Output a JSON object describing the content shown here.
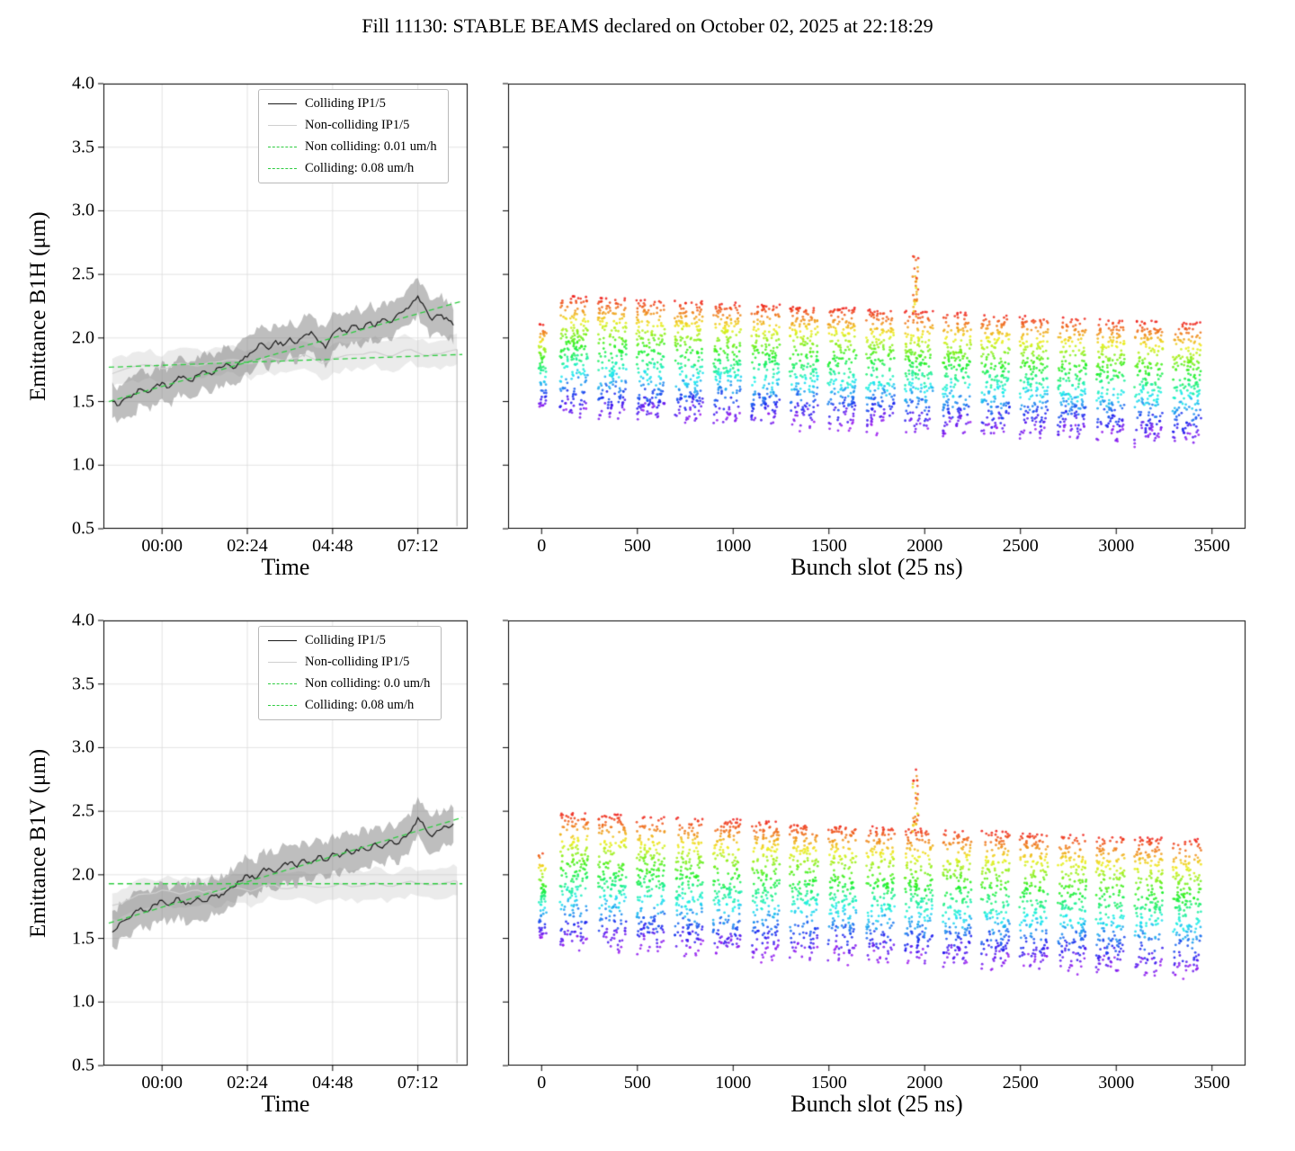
{
  "title": "Fill 11130: STABLE BEAMS declared on October 02, 2025 at 22:18:29",
  "colors": {
    "colliding_line": "#1a1a1a",
    "noncolliding_line": "#cfcfcf",
    "colliding_band": "rgba(125,125,125,0.50)",
    "noncolliding_band": "rgba(190,190,190,0.30)",
    "fit_line": "#2ecc40",
    "grid": "#dcdcdc",
    "end_drop": "#b5b5b5"
  },
  "chart_data": [
    {
      "type": "line",
      "panel": "B1H vs time",
      "xlabel": "Time",
      "ylabel": "Emittance B1H (μm)",
      "xlim_hours": [
        -1.65,
        8.6
      ],
      "ylim": [
        0.5,
        4.0
      ],
      "yticks": [
        0.5,
        1.0,
        1.5,
        2.0,
        2.5,
        3.0,
        3.5,
        4.0
      ],
      "xticks": [
        {
          "hour": 0.0,
          "label": "00:00"
        },
        {
          "hour": 2.4,
          "label": "02:24"
        },
        {
          "hour": 4.8,
          "label": "04:48"
        },
        {
          "hour": 7.2,
          "label": "07:12"
        }
      ],
      "grid": true,
      "legend": [
        {
          "label": "Colliding IP1/5",
          "style": "line-black"
        },
        {
          "label": "Non-colliding IP1/5",
          "style": "line-gray"
        },
        {
          "label": "Non colliding: 0.01 um/h",
          "style": "dash-green"
        },
        {
          "label": "Colliding: 0.08 um/h",
          "style": "dash-green"
        }
      ],
      "series": {
        "colliding": {
          "band_halfwidth": 0.14,
          "points": [
            [
              -1.4,
              1.5
            ],
            [
              -1.2,
              1.47
            ],
            [
              -1.0,
              1.53
            ],
            [
              -0.8,
              1.56
            ],
            [
              -0.6,
              1.6
            ],
            [
              -0.4,
              1.57
            ],
            [
              -0.2,
              1.62
            ],
            [
              0.0,
              1.65
            ],
            [
              0.2,
              1.61
            ],
            [
              0.4,
              1.67
            ],
            [
              0.6,
              1.7
            ],
            [
              0.8,
              1.66
            ],
            [
              1.0,
              1.71
            ],
            [
              1.2,
              1.74
            ],
            [
              1.4,
              1.71
            ],
            [
              1.6,
              1.77
            ],
            [
              1.8,
              1.8
            ],
            [
              2.0,
              1.76
            ],
            [
              2.2,
              1.82
            ],
            [
              2.4,
              1.85
            ],
            [
              2.6,
              1.9
            ],
            [
              2.8,
              1.96
            ],
            [
              3.0,
              1.91
            ],
            [
              3.2,
              1.98
            ],
            [
              3.4,
              1.94
            ],
            [
              3.6,
              2.0
            ],
            [
              3.8,
              1.96
            ],
            [
              4.0,
              2.02
            ],
            [
              4.2,
              2.05
            ],
            [
              4.4,
              1.97
            ],
            [
              4.6,
              1.92
            ],
            [
              4.8,
              2.03
            ],
            [
              5.0,
              2.08
            ],
            [
              5.2,
              2.04
            ],
            [
              5.4,
              2.1
            ],
            [
              5.6,
              2.07
            ],
            [
              5.8,
              2.12
            ],
            [
              6.0,
              2.09
            ],
            [
              6.2,
              2.15
            ],
            [
              6.4,
              2.12
            ],
            [
              6.6,
              2.18
            ],
            [
              6.8,
              2.21
            ],
            [
              7.0,
              2.26
            ],
            [
              7.2,
              2.33
            ],
            [
              7.4,
              2.24
            ],
            [
              7.6,
              2.14
            ],
            [
              7.8,
              2.18
            ],
            [
              8.0,
              2.16
            ],
            [
              8.2,
              2.1
            ]
          ]
        },
        "noncolliding": {
          "band_halfwidth": 0.11,
          "points": [
            [
              -1.4,
              1.72
            ],
            [
              -1.0,
              1.76
            ],
            [
              -0.5,
              1.79
            ],
            [
              0.0,
              1.76
            ],
            [
              0.5,
              1.8
            ],
            [
              1.0,
              1.78
            ],
            [
              1.5,
              1.81
            ],
            [
              2.0,
              1.83
            ],
            [
              2.5,
              1.8
            ],
            [
              3.0,
              1.85
            ],
            [
              3.5,
              1.82
            ],
            [
              4.0,
              1.87
            ],
            [
              4.5,
              1.8
            ],
            [
              5.0,
              1.85
            ],
            [
              5.5,
              1.87
            ],
            [
              6.0,
              1.89
            ],
            [
              6.5,
              1.86
            ],
            [
              7.0,
              1.91
            ],
            [
              7.5,
              1.86
            ],
            [
              8.0,
              1.89
            ],
            [
              8.3,
              1.91
            ]
          ]
        },
        "fit_noncolliding": {
          "rate_label": "0.01 um/h",
          "points": [
            [
              -1.5,
              1.77
            ],
            [
              8.45,
              1.87
            ]
          ]
        },
        "fit_colliding": {
          "rate_label": "0.08 um/h",
          "points": [
            [
              -1.5,
              1.5
            ],
            [
              8.45,
              2.29
            ]
          ]
        }
      },
      "end_drop_x": 8.3,
      "seed": 11
    },
    {
      "type": "scatter",
      "panel": "B1H vs bunch slot",
      "xlabel": "Bunch slot (25 ns)",
      "ylabel": "",
      "xlim": [
        -175,
        3675
      ],
      "ylim": [
        0.5,
        4.0
      ],
      "xticks": [
        0,
        500,
        1000,
        1500,
        2000,
        2500,
        3000,
        3500
      ],
      "yticks": [
        0.5,
        1.0,
        1.5,
        2.0,
        2.5,
        3.0,
        3.5,
        4.0
      ],
      "grid": false,
      "colormap": "rainbow",
      "point_radius": 1.4,
      "seed": 42,
      "lead_cluster": {
        "start": -15,
        "width": 40,
        "n": 70,
        "center": 1.78,
        "half_range": 0.33
      },
      "trains": {
        "count": 17,
        "start": 95,
        "period": 200,
        "width": 152,
        "n_per_train": 210,
        "center_start": 1.87,
        "center_step": -0.013,
        "half_range": 0.46
      },
      "spike": {
        "train_index": 9,
        "n": 30,
        "y_top": 2.72,
        "x_offset": 40,
        "x_width": 32
      }
    },
    {
      "type": "line",
      "panel": "B1V vs time",
      "xlabel": "Time",
      "ylabel": "Emittance B1V (μm)",
      "xlim_hours": [
        -1.65,
        8.6
      ],
      "ylim": [
        0.5,
        4.0
      ],
      "yticks": [
        0.5,
        1.0,
        1.5,
        2.0,
        2.5,
        3.0,
        3.5,
        4.0
      ],
      "xticks": [
        {
          "hour": 0.0,
          "label": "00:00"
        },
        {
          "hour": 2.4,
          "label": "02:24"
        },
        {
          "hour": 4.8,
          "label": "04:48"
        },
        {
          "hour": 7.2,
          "label": "07:12"
        }
      ],
      "grid": true,
      "legend": [
        {
          "label": "Colliding IP1/5",
          "style": "line-black"
        },
        {
          "label": "Non-colliding IP1/5",
          "style": "line-gray"
        },
        {
          "label": "Non colliding: 0.0 um/h",
          "style": "dash-green"
        },
        {
          "label": "Colliding: 0.08 um/h",
          "style": "dash-green"
        }
      ],
      "series": {
        "colliding": {
          "band_halfwidth": 0.14,
          "points": [
            [
              -1.4,
              1.55
            ],
            [
              -1.2,
              1.62
            ],
            [
              -1.0,
              1.65
            ],
            [
              -0.8,
              1.7
            ],
            [
              -0.6,
              1.74
            ],
            [
              -0.4,
              1.71
            ],
            [
              -0.2,
              1.77
            ],
            [
              0.0,
              1.8
            ],
            [
              0.2,
              1.76
            ],
            [
              0.4,
              1.82
            ],
            [
              0.6,
              1.79
            ],
            [
              0.8,
              1.77
            ],
            [
              1.0,
              1.82
            ],
            [
              1.2,
              1.79
            ],
            [
              1.4,
              1.84
            ],
            [
              1.6,
              1.82
            ],
            [
              1.8,
              1.87
            ],
            [
              2.0,
              1.9
            ],
            [
              2.2,
              1.95
            ],
            [
              2.4,
              2.0
            ],
            [
              2.6,
              1.97
            ],
            [
              2.8,
              2.03
            ],
            [
              3.0,
              2.05
            ],
            [
              3.2,
              2.02
            ],
            [
              3.4,
              2.08
            ],
            [
              3.6,
              2.1
            ],
            [
              3.8,
              2.06
            ],
            [
              4.0,
              2.12
            ],
            [
              4.2,
              2.09
            ],
            [
              4.4,
              2.15
            ],
            [
              4.6,
              2.11
            ],
            [
              4.8,
              2.17
            ],
            [
              5.0,
              2.14
            ],
            [
              5.2,
              2.2
            ],
            [
              5.4,
              2.17
            ],
            [
              5.6,
              2.22
            ],
            [
              5.8,
              2.19
            ],
            [
              6.0,
              2.25
            ],
            [
              6.2,
              2.21
            ],
            [
              6.4,
              2.27
            ],
            [
              6.6,
              2.24
            ],
            [
              6.8,
              2.3
            ],
            [
              7.0,
              2.34
            ],
            [
              7.2,
              2.45
            ],
            [
              7.4,
              2.37
            ],
            [
              7.6,
              2.3
            ],
            [
              7.8,
              2.35
            ],
            [
              8.0,
              2.38
            ],
            [
              8.2,
              2.4
            ]
          ]
        },
        "noncolliding": {
          "band_halfwidth": 0.11,
          "points": [
            [
              -1.4,
              1.76
            ],
            [
              -1.0,
              1.8
            ],
            [
              -0.5,
              1.85
            ],
            [
              0.0,
              1.88
            ],
            [
              0.5,
              1.85
            ],
            [
              1.0,
              1.88
            ],
            [
              1.5,
              1.86
            ],
            [
              2.0,
              1.9
            ],
            [
              2.5,
              1.87
            ],
            [
              3.0,
              1.92
            ],
            [
              3.5,
              1.89
            ],
            [
              4.0,
              1.92
            ],
            [
              4.5,
              1.9
            ],
            [
              5.0,
              1.93
            ],
            [
              5.5,
              1.91
            ],
            [
              6.0,
              1.94
            ],
            [
              6.5,
              1.91
            ],
            [
              7.0,
              1.95
            ],
            [
              7.5,
              1.92
            ],
            [
              8.0,
              1.94
            ],
            [
              8.3,
              1.95
            ]
          ]
        },
        "fit_noncolliding": {
          "rate_label": "0.0 um/h",
          "points": [
            [
              -1.5,
              1.93
            ],
            [
              8.45,
              1.93
            ]
          ]
        },
        "fit_colliding": {
          "rate_label": "0.08 um/h",
          "points": [
            [
              -1.5,
              1.62
            ],
            [
              8.45,
              2.45
            ]
          ]
        }
      },
      "end_drop_x": 8.3,
      "seed": 12
    },
    {
      "type": "scatter",
      "panel": "B1V vs bunch slot",
      "xlabel": "Bunch slot (25 ns)",
      "ylabel": "",
      "xlim": [
        -175,
        3675
      ],
      "ylim": [
        0.5,
        4.0
      ],
      "xticks": [
        0,
        500,
        1000,
        1500,
        2000,
        2500,
        3000,
        3500
      ],
      "yticks": [
        0.5,
        1.0,
        1.5,
        2.0,
        2.5,
        3.0,
        3.5,
        4.0
      ],
      "grid": false,
      "colormap": "rainbow",
      "point_radius": 1.4,
      "seed": 77,
      "lead_cluster": {
        "start": -15,
        "width": 40,
        "n": 70,
        "center": 1.85,
        "half_range": 0.35
      },
      "trains": {
        "count": 17,
        "start": 95,
        "period": 200,
        "width": 152,
        "n_per_train": 210,
        "center_start": 1.97,
        "center_step": -0.013,
        "half_range": 0.52
      },
      "spike": {
        "train_index": 9,
        "n": 30,
        "y_top": 2.88,
        "x_offset": 40,
        "x_width": 32
      }
    }
  ]
}
